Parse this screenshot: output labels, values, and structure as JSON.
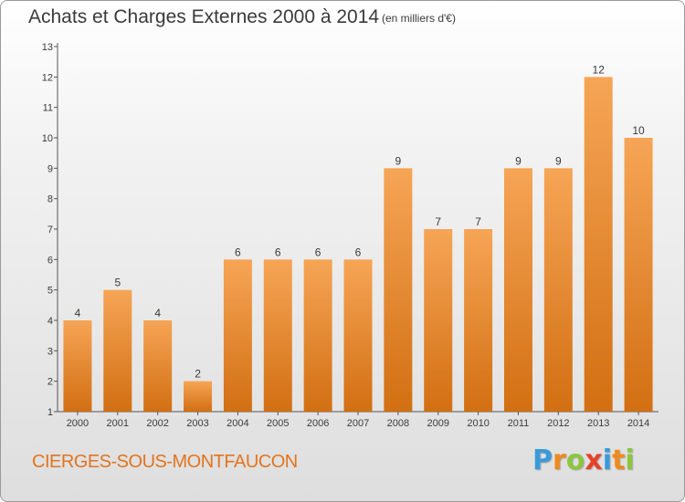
{
  "title": "Achats et Charges Externes 2000 à 2014",
  "subtitle": "(en milliers d'€)",
  "commune": "CIERGES-SOUS-MONTFAUCON",
  "logo": {
    "letters": [
      "P",
      "r",
      "o",
      "x",
      "i",
      "t",
      "i"
    ],
    "colors": [
      "#3a9ad9",
      "#f08a1c",
      "#8cc63f",
      "#e8412a",
      "#3a9ad9",
      "#f08a1c",
      "#8cc63f"
    ]
  },
  "colors": {
    "bar_top": "#f6a556",
    "bar_bottom": "#d26f12",
    "text": "#3a3a3a",
    "commune": "#e2741e"
  },
  "chart_data": {
    "type": "bar",
    "categories": [
      "2000",
      "2001",
      "2002",
      "2003",
      "2004",
      "2005",
      "2006",
      "2007",
      "2008",
      "2009",
      "2010",
      "2011",
      "2012",
      "2013",
      "2014"
    ],
    "values": [
      4,
      5,
      4,
      2,
      6,
      6,
      6,
      6,
      9,
      7,
      7,
      9,
      9,
      12,
      10
    ],
    "y_ticks": [
      "1",
      "2",
      "3",
      "4",
      "5",
      "6",
      "7",
      "8",
      "9",
      "10",
      "11",
      "12",
      "13"
    ],
    "ylim": [
      1,
      13
    ],
    "grid": false,
    "data_labels": true
  }
}
